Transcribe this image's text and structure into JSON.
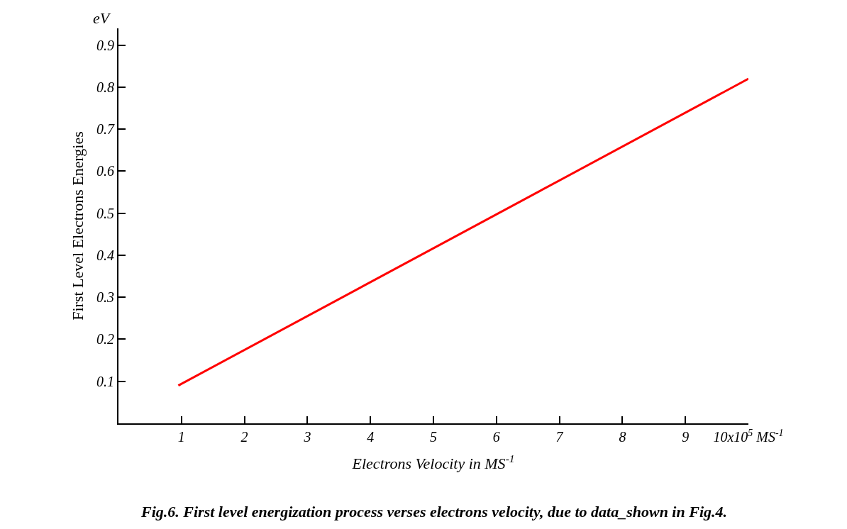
{
  "chart_data": {
    "type": "line",
    "xlabel": "Electrons Velocity in MS$^{-1}$",
    "ylabel": "First Level Electrons Energies",
    "annotations": [
      "eV",
      "Fig.6. First level energization process verses electrons velocity, due to data_shown in Fig.4."
    ],
    "series": [
      {
        "color": "#ff0000",
        "x": [
          0.95,
          10
        ],
        "values": [
          0.09,
          0.82
        ]
      }
    ],
    "xlim": [
      0,
      10
    ],
    "ylim": [
      0,
      0.94
    ],
    "xticks": [
      1,
      2,
      3,
      4,
      5,
      6,
      7,
      8,
      9,
      {
        "value": 10,
        "label": "10x10$^{5}$ MS$^{-1}$"
      }
    ],
    "yticks": [
      0.1,
      0.2,
      0.3,
      0.4,
      0.5,
      0.6,
      0.7,
      0.8,
      0.9
    ],
    "legend": false,
    "marker": "none",
    "line_style": "solid"
  }
}
